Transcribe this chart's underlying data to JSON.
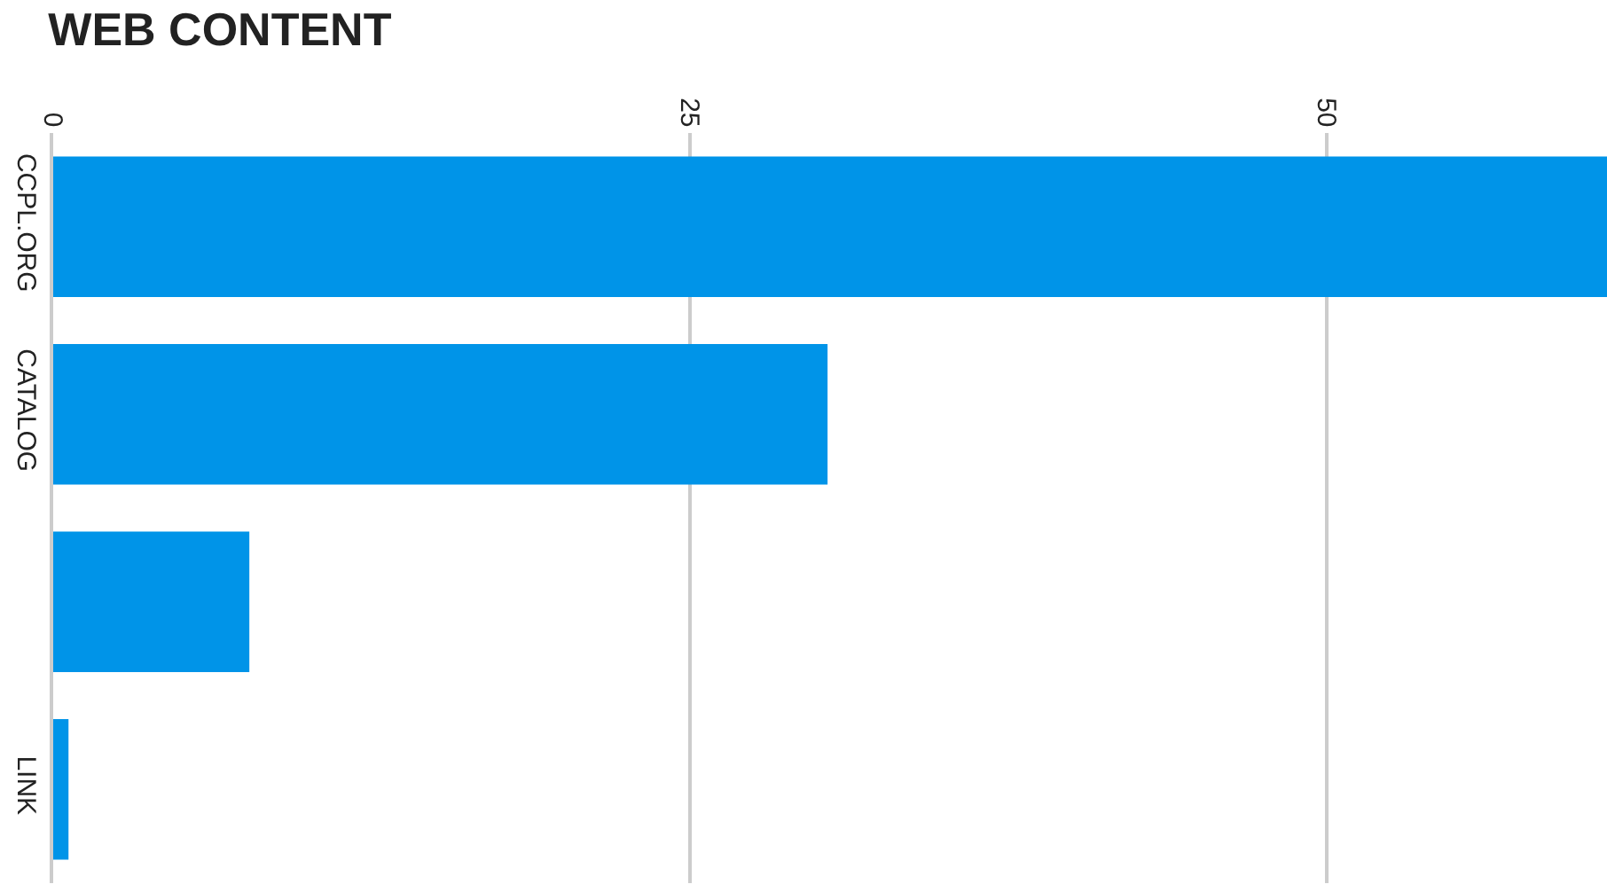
{
  "chart_data": {
    "type": "bar",
    "orientation": "horizontal",
    "title": "WEB CONTENT",
    "categories": [
      "CCPL.ORG",
      "CATALOG",
      null,
      "LINK"
    ],
    "values": [
      61,
      30.4,
      7.7,
      0.6
    ],
    "color": "#0094e8",
    "xlim": [
      0,
      61
    ],
    "xticks": [
      0,
      25,
      50
    ],
    "grid": "x"
  }
}
